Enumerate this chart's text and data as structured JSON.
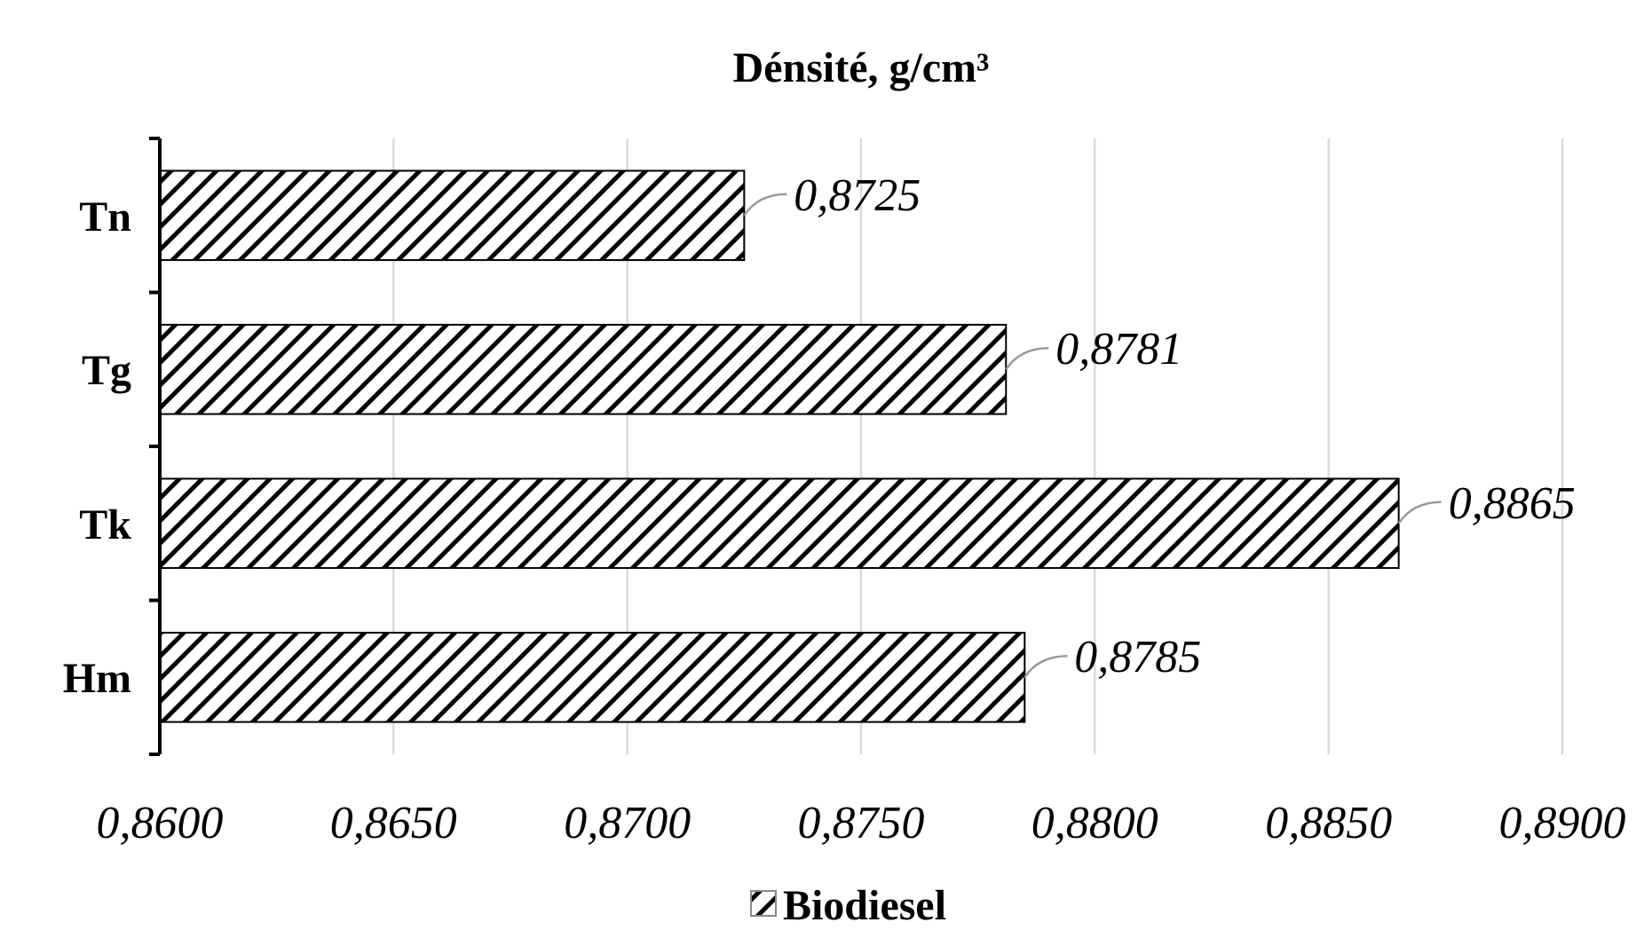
{
  "chart_data": {
    "type": "bar",
    "orientation": "horizontal",
    "title": "Dénsité, g/cm³",
    "categories": [
      "Tn",
      "Tg",
      "Tk",
      "Hm"
    ],
    "series": [
      {
        "name": "Biodiesel",
        "color": "#000000",
        "values": [
          0.8725,
          0.8781,
          0.8865,
          0.8785
        ],
        "value_labels": [
          "0,8725",
          "0,8781",
          "0,8865",
          "0,8785"
        ]
      }
    ],
    "xlim": [
      0.86,
      0.89
    ],
    "xticks": [
      {
        "value": 0.86,
        "label": "0,8600"
      },
      {
        "value": 0.865,
        "label": "0,8650"
      },
      {
        "value": 0.87,
        "label": "0,8700"
      },
      {
        "value": 0.875,
        "label": "0,8750"
      },
      {
        "value": 0.88,
        "label": "0,8800"
      },
      {
        "value": 0.885,
        "label": "0,8850"
      },
      {
        "value": 0.89,
        "label": "0,8900"
      }
    ],
    "grid": "x",
    "legend": "bottom"
  }
}
